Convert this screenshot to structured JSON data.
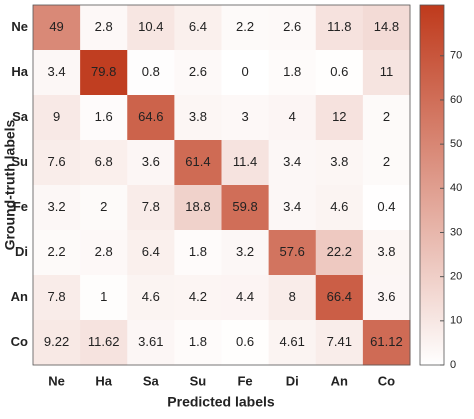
{
  "chart_data": {
    "type": "heatmap",
    "x_label": "Predicted labels",
    "y_label": "Ground-truth labels",
    "x_categories": [
      "Ne",
      "Ha",
      "Sa",
      "Su",
      "Fe",
      "Di",
      "An",
      "Co"
    ],
    "y_categories": [
      "Ne",
      "Ha",
      "Sa",
      "Su",
      "Fe",
      "Di",
      "An",
      "Co"
    ],
    "values": [
      [
        49,
        2.8,
        10.4,
        6.4,
        2.2,
        2.6,
        11.8,
        14.8
      ],
      [
        3.4,
        79.8,
        0.8,
        2.6,
        0,
        1.8,
        0.6,
        11
      ],
      [
        9,
        1.6,
        64.6,
        3.8,
        3,
        4,
        12,
        2
      ],
      [
        7.6,
        6.8,
        3.6,
        61.4,
        11.4,
        3.4,
        3.8,
        2
      ],
      [
        3.2,
        2,
        7.8,
        18.8,
        59.8,
        3.4,
        4.6,
        0.4
      ],
      [
        2.2,
        2.8,
        6.4,
        1.8,
        3.2,
        57.6,
        22.2,
        3.8
      ],
      [
        7.8,
        1,
        4.6,
        4.2,
        4.4,
        8,
        66.4,
        3.6
      ],
      [
        9.22,
        11.62,
        3.61,
        1.8,
        0.6,
        4.61,
        7.41,
        61.12
      ]
    ],
    "clim": [
      0,
      81.5
    ],
    "cticks": [
      0,
      10,
      20,
      30,
      40,
      50,
      60,
      70
    ],
    "colormap": [
      "#ffffff",
      "#bf3a1c"
    ]
  }
}
